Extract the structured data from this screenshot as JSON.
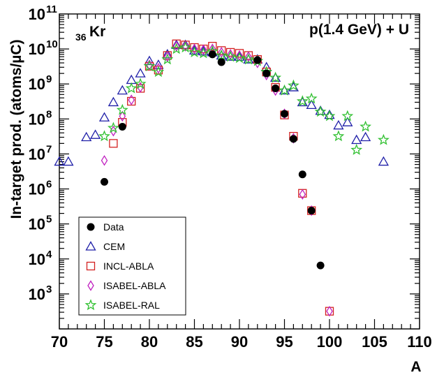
{
  "chart_data": {
    "type": "scatter",
    "title": "",
    "xlabel": "A",
    "ylabel": "In-target prod. (atoms/µC)",
    "yscale": "log",
    "xlim": [
      70,
      110
    ],
    "ylim_exp": [
      2,
      11
    ],
    "x_ticks": [
      "70",
      "75",
      "80",
      "85",
      "90",
      "95",
      "100",
      "105",
      "110"
    ],
    "y_tick_base": "10",
    "y_tick_exps": [
      "3",
      "4",
      "5",
      "6",
      "7",
      "8",
      "9",
      "10",
      "11"
    ],
    "annotation_left_sub": "36",
    "annotation_left_main": "Kr",
    "annotation_right": "p(1.4 GeV) + U",
    "legend_position": "bottom-left",
    "series": [
      {
        "name": "Data",
        "marker": "circle-filled",
        "color": "#000000",
        "points": [
          [
            75,
            1600000.0
          ],
          [
            77,
            60000000.0
          ],
          [
            87,
            7000000000.0
          ],
          [
            88,
            4200000000.0
          ],
          [
            92,
            4800000000.0
          ],
          [
            93,
            2000000000.0
          ],
          [
            94,
            750000000.0
          ],
          [
            95,
            140000000.0
          ],
          [
            96,
            27000000.0
          ],
          [
            97,
            2600000.0
          ],
          [
            98,
            240000.0
          ],
          [
            99,
            6500.0
          ]
        ]
      },
      {
        "name": "CEM",
        "marker": "triangle-open",
        "color": "#1f1fa8",
        "points": [
          [
            70,
            6000000.0
          ],
          [
            71,
            6000000.0
          ],
          [
            73,
            30000000.0
          ],
          [
            74,
            35000000.0
          ],
          [
            75,
            110000000.0
          ],
          [
            76,
            300000000.0
          ],
          [
            77,
            650000000.0
          ],
          [
            78,
            1300000000.0
          ],
          [
            79,
            2000000000.0
          ],
          [
            80,
            4500000000.0
          ],
          [
            81,
            3500000000.0
          ],
          [
            82,
            7000000000.0
          ],
          [
            83,
            13000000000.0
          ],
          [
            84,
            13000000000.0
          ],
          [
            85,
            9000000000.0
          ],
          [
            86,
            8500000000.0
          ],
          [
            87,
            8000000000.0
          ],
          [
            88,
            6500000000.0
          ],
          [
            89,
            6000000000.0
          ],
          [
            90,
            6000000000.0
          ],
          [
            91,
            5000000000.0
          ],
          [
            92,
            5000000000.0
          ],
          [
            93,
            3000000000.0
          ],
          [
            94,
            1500000000.0
          ],
          [
            95,
            650000000.0
          ],
          [
            96,
            800000000.0
          ],
          [
            97,
            300000000.0
          ],
          [
            98,
            250000000.0
          ],
          [
            99,
            170000000.0
          ],
          [
            100,
            130000000.0
          ],
          [
            101,
            65000000.0
          ],
          [
            102,
            80000000.0
          ],
          [
            103,
            25000000.0
          ],
          [
            104,
            30000000.0
          ],
          [
            106,
            6000000.0
          ]
        ]
      },
      {
        "name": "INCL-ABLA",
        "marker": "square-open",
        "color": "#d42020",
        "points": [
          [
            76,
            20000000.0
          ],
          [
            77,
            80000000.0
          ],
          [
            78,
            320000000.0
          ],
          [
            79,
            750000000.0
          ],
          [
            80,
            3200000000.0
          ],
          [
            81,
            2500000000.0
          ],
          [
            82,
            6500000000.0
          ],
          [
            83,
            14000000000.0
          ],
          [
            84,
            13000000000.0
          ],
          [
            85,
            11000000000.0
          ],
          [
            86,
            10000000000.0
          ],
          [
            87,
            12000000000.0
          ],
          [
            88,
            9000000000.0
          ],
          [
            89,
            8000000000.0
          ],
          [
            90,
            7500000000.0
          ],
          [
            91,
            6500000000.0
          ],
          [
            92,
            5000000000.0
          ],
          [
            93,
            2200000000.0
          ],
          [
            94,
            800000000.0
          ],
          [
            95,
            130000000.0
          ],
          [
            96,
            32000000.0
          ],
          [
            97,
            750000.0
          ],
          [
            98,
            240000.0
          ],
          [
            100,
            320.0
          ]
        ]
      },
      {
        "name": "ISABEL-ABLA",
        "marker": "diamond-open",
        "color": "#c020c0",
        "points": [
          [
            75,
            6500000.0
          ],
          [
            76,
            45000000.0
          ],
          [
            77,
            120000000.0
          ],
          [
            78,
            350000000.0
          ],
          [
            79,
            800000000.0
          ],
          [
            80,
            3500000000.0
          ],
          [
            81,
            2800000000.0
          ],
          [
            82,
            6000000000.0
          ],
          [
            83,
            12000000000.0
          ],
          [
            84,
            12000000000.0
          ],
          [
            85,
            10000000000.0
          ],
          [
            86,
            9500000000.0
          ],
          [
            87,
            10000000000.0
          ],
          [
            88,
            8000000000.0
          ],
          [
            89,
            7000000000.0
          ],
          [
            90,
            6500000000.0
          ],
          [
            91,
            6000000000.0
          ],
          [
            92,
            4000000000.0
          ],
          [
            93,
            1800000000.0
          ],
          [
            94,
            650000000.0
          ],
          [
            95,
            140000000.0
          ],
          [
            96,
            28000000.0
          ],
          [
            97,
            700000.0
          ],
          [
            98,
            240000.0
          ],
          [
            100,
            320.0
          ]
        ]
      },
      {
        "name": "ISABEL-RAL",
        "marker": "star-open",
        "color": "#30c030",
        "points": [
          [
            75,
            32000000.0
          ],
          [
            76,
            55000000.0
          ],
          [
            77,
            180000000.0
          ],
          [
            78,
            750000000.0
          ],
          [
            79,
            1000000000.0
          ],
          [
            80,
            3200000000.0
          ],
          [
            81,
            2200000000.0
          ],
          [
            82,
            5000000000.0
          ],
          [
            83,
            10000000000.0
          ],
          [
            84,
            11000000000.0
          ],
          [
            85,
            8000000000.0
          ],
          [
            86,
            7500000000.0
          ],
          [
            87,
            8500000000.0
          ],
          [
            88,
            6500000000.0
          ],
          [
            89,
            6000000000.0
          ],
          [
            90,
            5500000000.0
          ],
          [
            91,
            5000000000.0
          ],
          [
            92,
            4500000000.0
          ],
          [
            93,
            2200000000.0
          ],
          [
            94,
            1500000000.0
          ],
          [
            95,
            650000000.0
          ],
          [
            96,
            900000000.0
          ],
          [
            97,
            320000000.0
          ],
          [
            98,
            380000000.0
          ],
          [
            99,
            160000000.0
          ],
          [
            100,
            120000000.0
          ],
          [
            101,
            32000000.0
          ],
          [
            102,
            120000000.0
          ],
          [
            103,
            13000000.0
          ],
          [
            104,
            60000000.0
          ],
          [
            106,
            25000000.0
          ]
        ]
      }
    ]
  }
}
